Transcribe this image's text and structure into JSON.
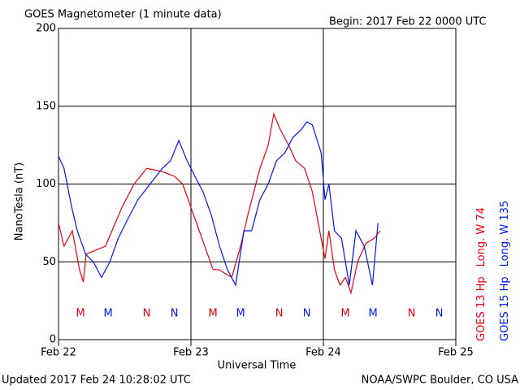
{
  "chart_data": {
    "type": "line",
    "title": "GOES Magnetometer (1 minute data)",
    "begin": "Begin:  2017 Feb 22 0000 UTC",
    "y_label": "NanoTesla (nT)",
    "x_label": "Universal Time",
    "updated": "Updated 2017 Feb 24 10:28:02 UTC",
    "source": "NOAA/SWPC Boulder, CO USA",
    "xlim": [
      0,
      72
    ],
    "xticks": [
      {
        "value": 0,
        "label": "Feb 22"
      },
      {
        "value": 24,
        "label": "Feb 23"
      },
      {
        "value": 48,
        "label": "Feb 24"
      },
      {
        "value": 72,
        "label": "Feb 25"
      }
    ],
    "ylim": [
      0,
      200
    ],
    "yticks": [
      0,
      50,
      100,
      150,
      200
    ],
    "grid": true,
    "series": [
      {
        "name": "GOES 13 Hp",
        "longitude": "Long. W 74",
        "color": "#e8000b",
        "x": [
          0,
          1,
          2.5,
          3.8,
          4.5,
          5,
          8.5,
          11.5,
          13.7,
          16,
          18.8,
          21,
          22.5,
          24,
          25.5,
          27,
          28,
          29,
          31.4,
          33,
          34.3,
          36.5,
          38,
          39,
          40.2,
          41.7,
          43,
          44.6,
          46,
          47.6,
          48.3,
          49,
          50,
          51,
          52,
          53,
          54.2,
          55.7,
          57.2,
          58.3
        ],
        "values": [
          75,
          60,
          70,
          45,
          37,
          55,
          60,
          85,
          100,
          110,
          108,
          105,
          100,
          85,
          70,
          55,
          45,
          45,
          40,
          60,
          80,
          110,
          125,
          145,
          135,
          125,
          115,
          110,
          95,
          65,
          52,
          70,
          45,
          35,
          40,
          30,
          50,
          62,
          65,
          70
        ]
      },
      {
        "name": "GOES 15 Hp",
        "longitude": "Long. W 135",
        "color": "#0015ff",
        "x": [
          0,
          1,
          2.4,
          3.4,
          4.9,
          6.3,
          7.8,
          9.3,
          10.8,
          12.2,
          14.4,
          16.6,
          18.8,
          20.3,
          21.8,
          23.3,
          24.7,
          26.2,
          27.7,
          29.2,
          30.6,
          32.1,
          33.6,
          35,
          36.5,
          38,
          39.5,
          41,
          42.5,
          44,
          45,
          46,
          47.6,
          48.3,
          49,
          50,
          51.3,
          52.7,
          53.9,
          55.4,
          56.9,
          57.9
        ],
        "values": [
          118,
          110,
          85,
          70,
          55,
          50,
          40,
          50,
          65,
          75,
          90,
          100,
          110,
          115,
          128,
          115,
          105,
          95,
          80,
          60,
          45,
          35,
          70,
          70,
          90,
          100,
          115,
          120,
          130,
          135,
          140,
          138,
          120,
          90,
          100,
          70,
          65,
          35,
          70,
          60,
          35,
          75
        ]
      }
    ],
    "markers": [
      {
        "label": "M",
        "x": 4,
        "series": 0
      },
      {
        "label": "M",
        "x": 9,
        "series": 1
      },
      {
        "label": "N",
        "x": 16,
        "series": 0
      },
      {
        "label": "N",
        "x": 21,
        "series": 1
      },
      {
        "label": "M",
        "x": 28,
        "series": 0
      },
      {
        "label": "M",
        "x": 33,
        "series": 1
      },
      {
        "label": "N",
        "x": 40,
        "series": 0
      },
      {
        "label": "N",
        "x": 45,
        "series": 1
      },
      {
        "label": "M",
        "x": 52,
        "series": 0
      },
      {
        "label": "M",
        "x": 57,
        "series": 1
      },
      {
        "label": "N",
        "x": 64,
        "series": 0
      },
      {
        "label": "N",
        "x": 69,
        "series": 1
      }
    ]
  }
}
